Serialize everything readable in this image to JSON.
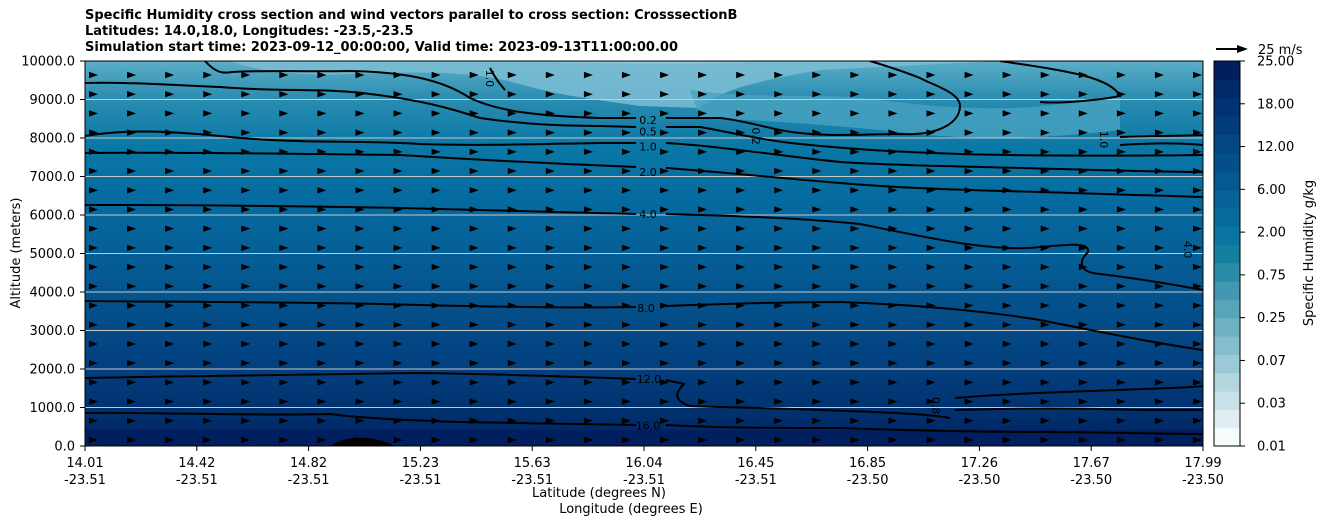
{
  "header": {
    "title_line1": "Specific Humidity cross section and wind vectors parallel to cross section: CrosssectionB",
    "title_line2": "Latitudes: 14.0,18.0, Longitudes: -23.5,-23.5",
    "title_line3": "Simulation start time: 2023-09-12_00:00:00, Valid time: 2023-09-13T11:00:00.00"
  },
  "chart_data": {
    "type": "contourf",
    "xlabel": "Latitude (degrees N)",
    "xlabel2": "Longitude (degrees E)",
    "ylabel": "Altitude (meters)",
    "ylim": [
      0,
      10000
    ],
    "x_ticks": [
      {
        "lat": "14.01",
        "lon": "-23.51"
      },
      {
        "lat": "14.42",
        "lon": "-23.51"
      },
      {
        "lat": "14.82",
        "lon": "-23.51"
      },
      {
        "lat": "15.23",
        "lon": "-23.51"
      },
      {
        "lat": "15.63",
        "lon": "-23.51"
      },
      {
        "lat": "16.04",
        "lon": "-23.51"
      },
      {
        "lat": "16.45",
        "lon": "-23.51"
      },
      {
        "lat": "16.85",
        "lon": "-23.50"
      },
      {
        "lat": "17.26",
        "lon": "-23.50"
      },
      {
        "lat": "17.67",
        "lon": "-23.50"
      },
      {
        "lat": "17.99",
        "lon": "-23.50"
      }
    ],
    "y_ticks": [
      "0.0",
      "1000.0",
      "2000.0",
      "3000.0",
      "4000.0",
      "5000.0",
      "6000.0",
      "7000.0",
      "8000.0",
      "9000.0",
      "10000.0"
    ],
    "grid": "horizontal",
    "colorbar": {
      "label": "Specific Humidity g/kg",
      "tick_labels": [
        "0.01",
        "0.03",
        "0.07",
        "0.25",
        "0.75",
        "2.00",
        "6.00",
        "12.00",
        "18.00",
        "25.00"
      ],
      "colors": [
        "#f7fcfd",
        "#e0eef2",
        "#c9e2e9",
        "#b3d6df",
        "#9cc9d6",
        "#85bdcc",
        "#6fb1c3",
        "#58a4b9",
        "#4198b0",
        "#2a8ba6",
        "#13809f",
        "#0a75a1",
        "#086b9c",
        "#076297",
        "#055890",
        "#044f89",
        "#034682",
        "#023c7a",
        "#013271",
        "#012868",
        "#011f5f"
      ]
    },
    "wind_key": {
      "label": "25 m/s",
      "value": 25
    },
    "contour_labels": [
      {
        "text": "0.2",
        "alt": 8470
      },
      {
        "text": "0.5",
        "alt": 8170
      },
      {
        "text": "1.0",
        "alt": 7780
      },
      {
        "text": "2.0",
        "alt": 7120
      },
      {
        "text": "4.0",
        "alt": 6020
      },
      {
        "text": "8.0",
        "alt": 3590
      },
      {
        "text": "12.0",
        "alt": 1740
      },
      {
        "text": "16.0",
        "alt": 530
      },
      {
        "text": "1.0",
        "alt": 9550
      },
      {
        "text": "0.2",
        "alt": 8050
      },
      {
        "text": "1.0",
        "alt": 7960
      },
      {
        "text": "4.0",
        "alt": 5100
      },
      {
        "text": "0.8",
        "alt": 1050
      }
    ]
  }
}
